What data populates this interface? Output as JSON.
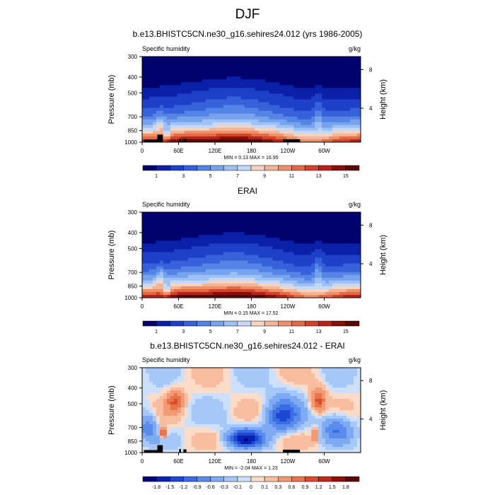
{
  "figure": {
    "title": "DJF"
  },
  "colors": {
    "abs_palette": [
      "#02026e",
      "#0a20a8",
      "#1e40c8",
      "#3562da",
      "#5384e6",
      "#76a3ee",
      "#9ec0f4",
      "#c4d9f8",
      "#f5d4c4",
      "#f3b498",
      "#ee9068",
      "#e46a44",
      "#d24428",
      "#b42418",
      "#861008",
      "#5c0606"
    ],
    "diff_palette": [
      "#00007a",
      "#0a22b2",
      "#1e48d0",
      "#3a6ce6",
      "#5a8cee",
      "#7eaaf4",
      "#a6c8f8",
      "#cce0fc",
      "#fcdcc8",
      "#f8bc9e",
      "#f29a74",
      "#e8744a",
      "#d84c2c",
      "#bc281a",
      "#8e1008",
      "#5e0604"
    ],
    "topography": "#000000"
  },
  "chart_data": [
    {
      "type": "contour",
      "title": "b.e13.BHISTC5CN.ne30_g16.sehires24.012 (yrs 1986-2005)",
      "left_label": "Specific humidity",
      "right_label": "g/kg",
      "xticks": [
        "0",
        "60E",
        "120E",
        "180",
        "120W",
        "60W"
      ],
      "ylabel": "Pressure (mb)",
      "yticks": [
        "300",
        "400",
        "500",
        "700",
        "850",
        "1000"
      ],
      "ylabel_right": "Height (km)",
      "yticks_right": [
        "8",
        "4"
      ],
      "stats": "MIN =   0.13  MAX =  16.95",
      "min": 0.13,
      "max": 16.95,
      "colorbar_labels": [
        "1",
        "3",
        "5",
        "7",
        "9",
        "11",
        "13",
        "15"
      ]
    },
    {
      "type": "contour",
      "title": "ERAI",
      "left_label": "Specific humidity",
      "right_label": "g/kg",
      "xticks": [
        "0",
        "60E",
        "120E",
        "180",
        "120W",
        "60W"
      ],
      "ylabel": "Pressure (mb)",
      "yticks": [
        "300",
        "400",
        "500",
        "700",
        "850",
        "1000"
      ],
      "ylabel_right": "Height (km)",
      "yticks_right": [
        "8",
        "4"
      ],
      "stats": "MIN =   0.15  MAX =  17.52",
      "min": 0.15,
      "max": 17.52,
      "colorbar_labels": [
        "1",
        "3",
        "5",
        "7",
        "9",
        "11",
        "13",
        "15"
      ]
    },
    {
      "type": "contour",
      "title": "b.e13.BHISTC5CN.ne30_g16.sehires24.012 - ERAI",
      "left_label": "Specific humidity",
      "right_label": "g/kg",
      "xticks": [
        "0",
        "60E",
        "120E",
        "180",
        "120W",
        "60W"
      ],
      "ylabel": "Pressure (mb)",
      "yticks": [
        "300",
        "400",
        "500",
        "700",
        "850",
        "1000"
      ],
      "ylabel_right": "Height (km)",
      "yticks_right": [
        "8",
        "4"
      ],
      "stats": "MIN =  -2.04  MAX =   1.23",
      "min": -2.04,
      "max": 1.23,
      "colorbar_labels": [
        "-1.8",
        "-1.5",
        "-1.2",
        "-0.9",
        "-0.6",
        "-0.3",
        "-0.1",
        "0",
        "0.1",
        "0.3",
        "0.6",
        "0.9",
        "1.2",
        "1.5",
        "1.8"
      ]
    }
  ]
}
